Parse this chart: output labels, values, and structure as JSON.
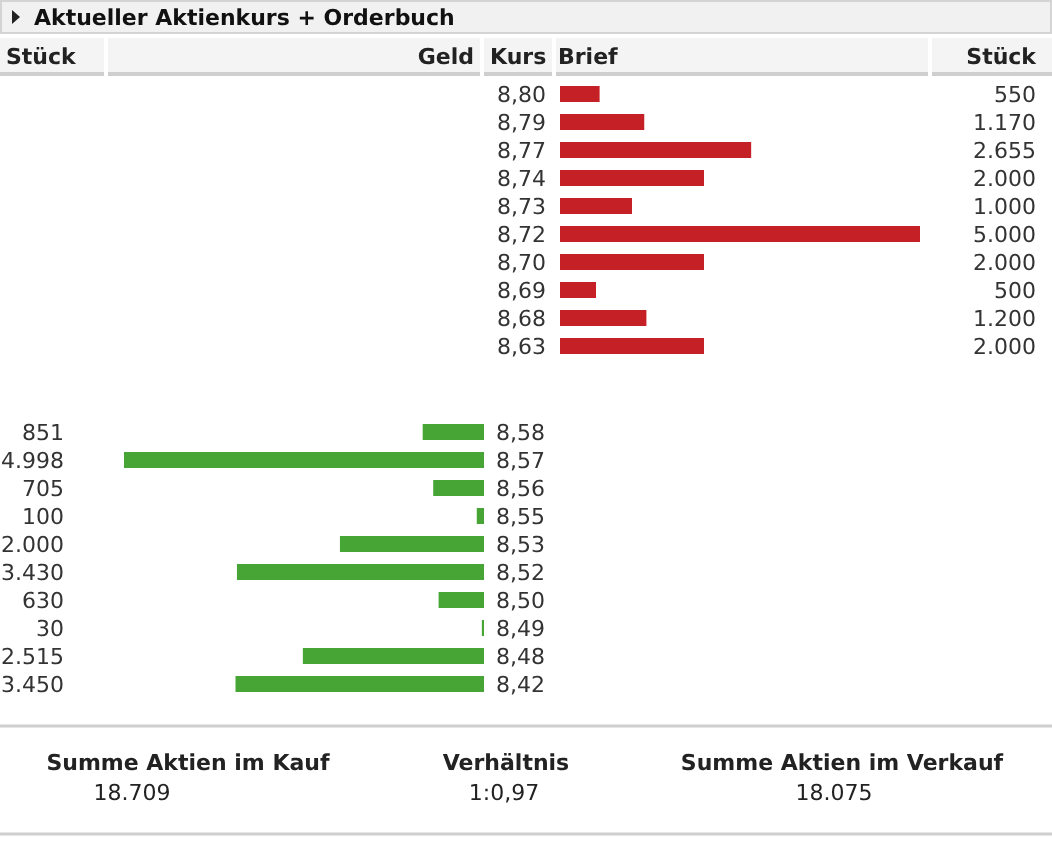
{
  "chart_data": [
    {
      "type": "bar",
      "orientation": "horizontal",
      "title": "Aktueller Aktienkurs + Orderbuch",
      "annotations": [
        "Stück",
        "Geld",
        "Kurs",
        "Brief",
        "Stück"
      ],
      "categories": [
        "8,80",
        "8,79",
        "8,77",
        "8,74",
        "8,73",
        "8,72",
        "8,70",
        "8,69",
        "8,68",
        "8,63"
      ],
      "values": [
        550,
        1170,
        2655,
        2000,
        1000,
        5000,
        2000,
        500,
        1200,
        2000
      ],
      "value_labels": [
        "550",
        "1.170",
        "2.655",
        "2.000",
        "1.000",
        "5.000",
        "2.000",
        "500",
        "1.200",
        "2.000"
      ],
      "color": "#c52026"
    },
    {
      "type": "bar",
      "orientation": "horizontal",
      "categories": [
        "8,58",
        "8,57",
        "8,56",
        "8,55",
        "8,53",
        "8,52",
        "8,50",
        "8,49",
        "8,48",
        "8,42"
      ],
      "values": [
        851,
        4998,
        705,
        100,
        2000,
        3430,
        630,
        30,
        2515,
        3450
      ],
      "value_labels": [
        "851",
        "4.998",
        "705",
        "100",
        "2.000",
        "3.430",
        "630",
        "30",
        "2.515",
        "3.450"
      ],
      "color": "#46a535"
    },
    {
      "type": "other",
      "annotations": [
        "Summe Aktien im Kauf",
        "18.709",
        "Verhältnis",
        "1:0,97",
        "Summe Aktien im Verkauf",
        "18.075"
      ]
    }
  ]
}
